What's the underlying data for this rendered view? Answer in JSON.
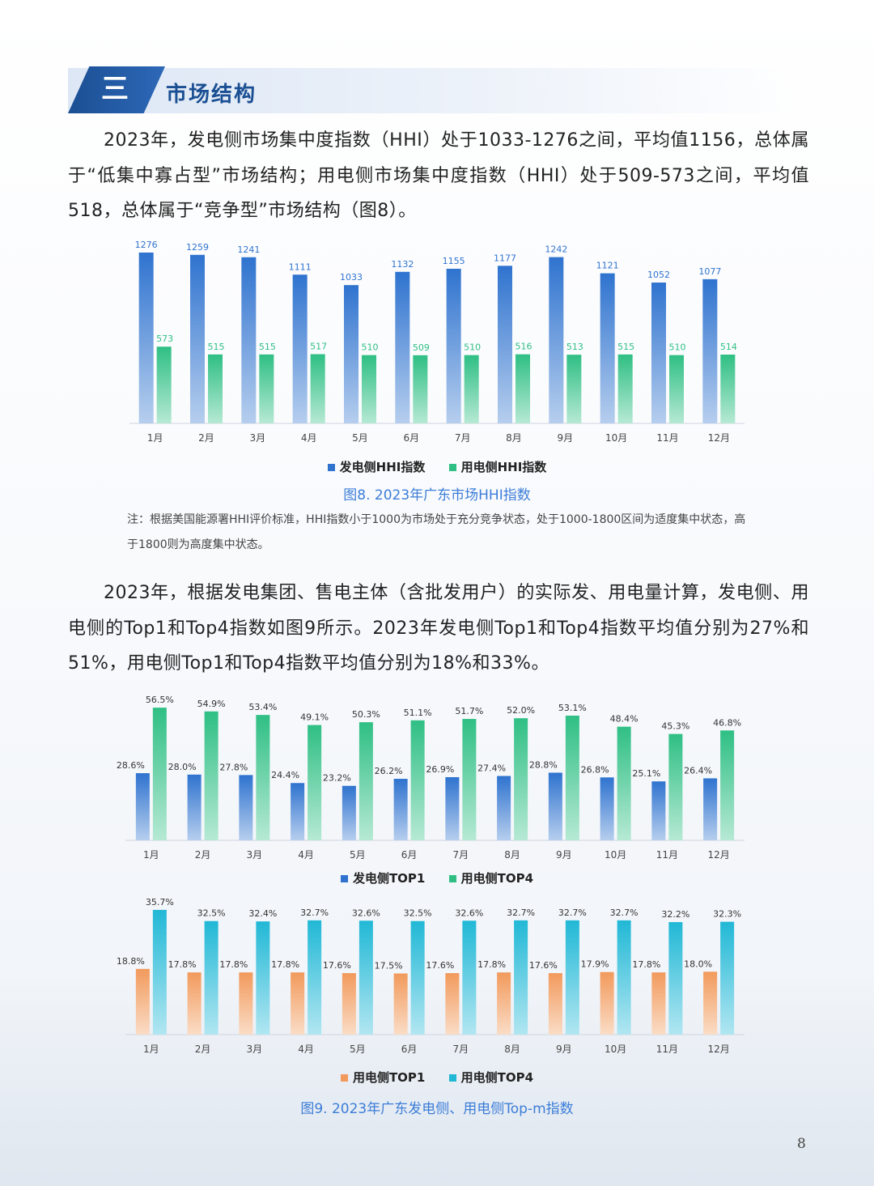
{
  "header": {
    "section_number": "三",
    "section_title": "市场结构"
  },
  "paragraph1": "2023年，发电侧市场集中度指数（HHI）处于1033-1276之间，平均值1156，总体属于“低集中寡占型”市场结构；用电侧市场集中度指数（HHI）处于509-573之间，平均值518，总体属于“竞争型”市场结构（图8）。",
  "paragraph2": "2023年，根据发电集团、售电主体（含批发用户）的实际发、用电量计算，发电侧、用电侧的Top1和Top4指数如图9所示。2023年发电侧Top1和Top4指数平均值分别为27%和51%，用电侧Top1和Top4指数平均值分别为18%和33%。",
  "figure8": {
    "caption": "图8. 2023年广东市场HHI指数",
    "note": "注：根据美国能源署HHI评价标准，HHI指数小于1000为市场处于充分竞争状态，处于1000-1800区间为适度集中状态，高于1800则为高度集中状态。",
    "legend": [
      "发电侧HHI指数",
      "用电侧HHI指数"
    ]
  },
  "figure9": {
    "caption": "图9. 2023年广东发电侧、用电侧Top-m指数",
    "legend_top": [
      "发电侧TOP1",
      "用电侧TOP4"
    ],
    "legend_bottom": [
      "用电侧TOP1",
      "用电侧TOP4"
    ]
  },
  "page_number": "8",
  "chart_data": [
    {
      "type": "bar",
      "categories": [
        "1月",
        "2月",
        "3月",
        "4月",
        "5月",
        "6月",
        "7月",
        "8月",
        "9月",
        "10月",
        "11月",
        "12月"
      ],
      "series": [
        {
          "name": "发电侧HHI指数",
          "values": [
            1276,
            1259,
            1241,
            1111,
            1033,
            1132,
            1155,
            1177,
            1242,
            1121,
            1052,
            1077
          ],
          "color": "#2f73cf"
        },
        {
          "name": "用电侧HHI指数",
          "values": [
            573,
            515,
            515,
            517,
            510,
            509,
            510,
            516,
            513,
            515,
            510,
            514
          ],
          "color": "#2fbf84"
        }
      ],
      "ylim": [
        0,
        1300
      ]
    },
    {
      "type": "bar",
      "categories": [
        "1月",
        "2月",
        "3月",
        "4月",
        "5月",
        "6月",
        "7月",
        "8月",
        "9月",
        "10月",
        "11月",
        "12月"
      ],
      "series": [
        {
          "name": "发电侧TOP1",
          "values": [
            28.6,
            28.0,
            27.8,
            24.4,
            23.2,
            26.2,
            26.9,
            27.4,
            28.8,
            26.8,
            25.1,
            26.4
          ],
          "labels": [
            "28.6%",
            "28.0%",
            "27.8%",
            "24.4%",
            "23.2%",
            "26.2%",
            "26.9%",
            "27.4%",
            "28.8%",
            "26.8%",
            "25.1%",
            "26.4%"
          ],
          "color": "#2f73cf"
        },
        {
          "name": "用电侧TOP4",
          "values": [
            56.5,
            54.9,
            53.4,
            49.1,
            50.3,
            51.1,
            51.7,
            52.0,
            53.1,
            48.4,
            45.3,
            46.8
          ],
          "labels": [
            "56.5%",
            "54.9%",
            "53.4%",
            "49.1%",
            "50.3%",
            "51.1%",
            "51.7%",
            "52.0%",
            "53.1%",
            "48.4%",
            "45.3%",
            "46.8%"
          ],
          "color": "#2fbf84"
        }
      ],
      "ylim": [
        0,
        60
      ]
    },
    {
      "type": "bar",
      "categories": [
        "1月",
        "2月",
        "3月",
        "4月",
        "5月",
        "6月",
        "7月",
        "8月",
        "9月",
        "10月",
        "11月",
        "12月"
      ],
      "series": [
        {
          "name": "用电侧TOP1",
          "values": [
            18.8,
            17.8,
            17.8,
            17.8,
            17.6,
            17.5,
            17.6,
            17.8,
            17.6,
            17.9,
            17.8,
            18.0
          ],
          "labels": [
            "18.8%",
            "17.8%",
            "17.8%",
            "17.8%",
            "17.6%",
            "17.5%",
            "17.6%",
            "17.8%",
            "17.6%",
            "17.9%",
            "17.8%",
            "18.0%"
          ],
          "color": "#f29a5c"
        },
        {
          "name": "用电侧TOP4",
          "values": [
            35.7,
            32.5,
            32.4,
            32.7,
            32.6,
            32.5,
            32.6,
            32.7,
            32.7,
            32.7,
            32.2,
            32.3
          ],
          "labels": [
            "35.7%",
            "32.5%",
            "32.4%",
            "32.7%",
            "32.6%",
            "32.5%",
            "32.6%",
            "32.7%",
            "32.7%",
            "32.7%",
            "32.2%",
            "32.3%"
          ],
          "color": "#21b8d6"
        }
      ],
      "ylim": [
        0,
        38
      ]
    }
  ]
}
